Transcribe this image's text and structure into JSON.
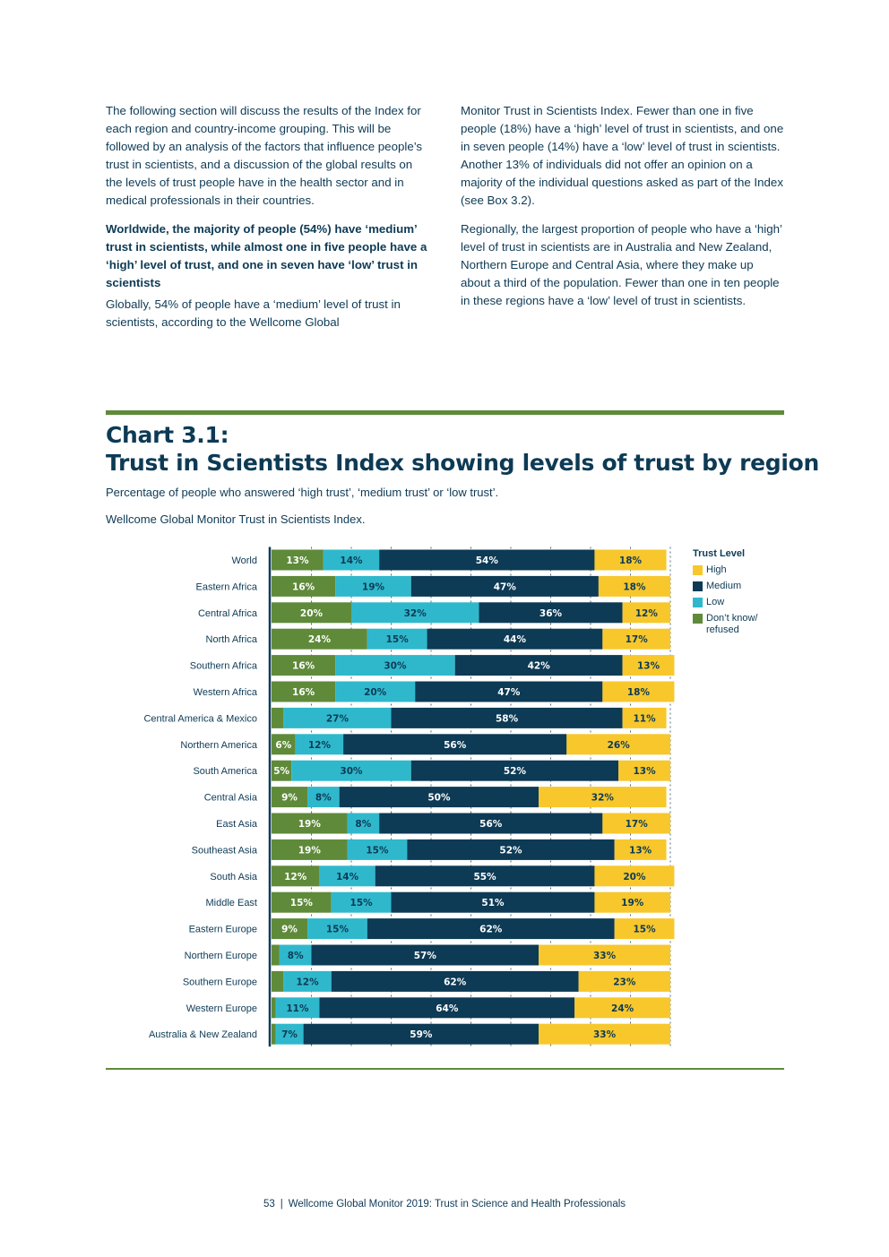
{
  "body_text": {
    "left_para1": "The following section will discuss the results of the Index for each region and country-income grouping. This will be followed by an analysis of the factors that influence people’s trust in scientists, and a discussion of the global results on the levels of trust people have in the health sector and in medical professionals in their countries.",
    "left_heading": "Worldwide, the majority of people (54%) have ‘medium’ trust in scientists, while almost one in five people have a ‘high’ level of trust, and one in seven have ‘low’ trust in scientists",
    "left_para2": "Globally, 54% of people have a ‘medium’ level of trust in scientists, according to the Wellcome Global",
    "right_para1": "Monitor Trust in Scientists Index. Fewer than one in five people (18%) have a ‘high’ level of trust in scientists, and one in seven people (14%) have a ‘low’ level of trust in scientists. Another 13% of individuals did not offer an opinion on a majority of the individual questions asked as part of the Index (see Box 3.2).",
    "right_para2": "Regionally, the largest proportion of people who have a ‘high’ level of trust in scientists are in Australia and New Zealand, Northern Europe and Central Asia, where they make up about a third of the population. Fewer than one in ten people in these regions have a ‘low’ level of trust in scientists."
  },
  "chart_header": {
    "title_line1": "Chart 3.1:",
    "title_line2": "Trust in Scientists Index showing levels of trust by region",
    "subtitle": "Percentage of people who answered ‘high trust’, ‘medium trust’ or ‘low trust’.",
    "source": "Wellcome Global Monitor Trust in Scientists Index."
  },
  "legend": {
    "title": "Trust Level",
    "items": [
      {
        "label": "High",
        "color": "#f7c72c"
      },
      {
        "label": "Medium",
        "color": "#0d3a55"
      },
      {
        "label": "Low",
        "color": "#2fb8cc"
      },
      {
        "label": "Don’t know/ refused",
        "color": "#5f8a3a"
      }
    ]
  },
  "chart_data": {
    "type": "bar",
    "orientation": "horizontal",
    "stacked": true,
    "title": "Trust in Scientists Index showing levels of trust by region",
    "categories": [
      "World",
      "Eastern Africa",
      "Central Africa",
      "North Africa",
      "Southern Africa",
      "Western Africa",
      "Central America & Mexico",
      "Northern America",
      "South America",
      "Central Asia",
      "East Asia",
      "Southeast Asia",
      "South Asia",
      "Middle East",
      "Eastern Europe",
      "Northern Europe",
      "Southern Europe",
      "Western Europe",
      "Australia & New Zealand"
    ],
    "series": [
      {
        "name": "Don’t know/ refused",
        "color": "#5f8a3a",
        "values": [
          13,
          16,
          20,
          24,
          16,
          16,
          3,
          6,
          5,
          9,
          19,
          19,
          12,
          15,
          9,
          2,
          3,
          1,
          1
        ],
        "labels": [
          "13%",
          "16%",
          "20%",
          "24%",
          "16%",
          "16%",
          "",
          "6%",
          "5%",
          "9%",
          "19%",
          "19%",
          "12%",
          "15%",
          "9%",
          "",
          "",
          "",
          ""
        ]
      },
      {
        "name": "Low",
        "color": "#2fb8cc",
        "values": [
          14,
          19,
          32,
          15,
          30,
          20,
          27,
          12,
          30,
          8,
          8,
          15,
          14,
          15,
          15,
          8,
          12,
          11,
          7
        ],
        "labels": [
          "14%",
          "19%",
          "32%",
          "15%",
          "30%",
          "20%",
          "27%",
          "12%",
          "30%",
          "8%",
          "8%",
          "15%",
          "14%",
          "15%",
          "15%",
          "8%",
          "12%",
          "11%",
          "7%"
        ]
      },
      {
        "name": "Medium",
        "color": "#0d3a55",
        "values": [
          54,
          47,
          36,
          44,
          42,
          47,
          58,
          56,
          52,
          50,
          56,
          52,
          55,
          51,
          62,
          57,
          62,
          64,
          59
        ],
        "labels": [
          "54%",
          "47%",
          "36%",
          "44%",
          "42%",
          "47%",
          "58%",
          "56%",
          "52%",
          "50%",
          "56%",
          "52%",
          "55%",
          "51%",
          "62%",
          "57%",
          "62%",
          "64%",
          "59%"
        ]
      },
      {
        "name": "High",
        "color": "#f7c72c",
        "values": [
          18,
          18,
          12,
          17,
          13,
          18,
          11,
          26,
          13,
          32,
          17,
          13,
          20,
          19,
          15,
          33,
          23,
          24,
          33
        ],
        "labels": [
          "18%",
          "18%",
          "12%",
          "17%",
          "13%",
          "18%",
          "11%",
          "26%",
          "13%",
          "32%",
          "17%",
          "13%",
          "20%",
          "19%",
          "15%",
          "33%",
          "23%",
          "24%",
          "33%"
        ]
      }
    ],
    "xlim": [
      0,
      100
    ],
    "grid": true,
    "legend_position": "right"
  },
  "footer": {
    "page_number": "53",
    "publication": "Wellcome Global Monitor 2019: Trust in Science and Health Professionals"
  }
}
